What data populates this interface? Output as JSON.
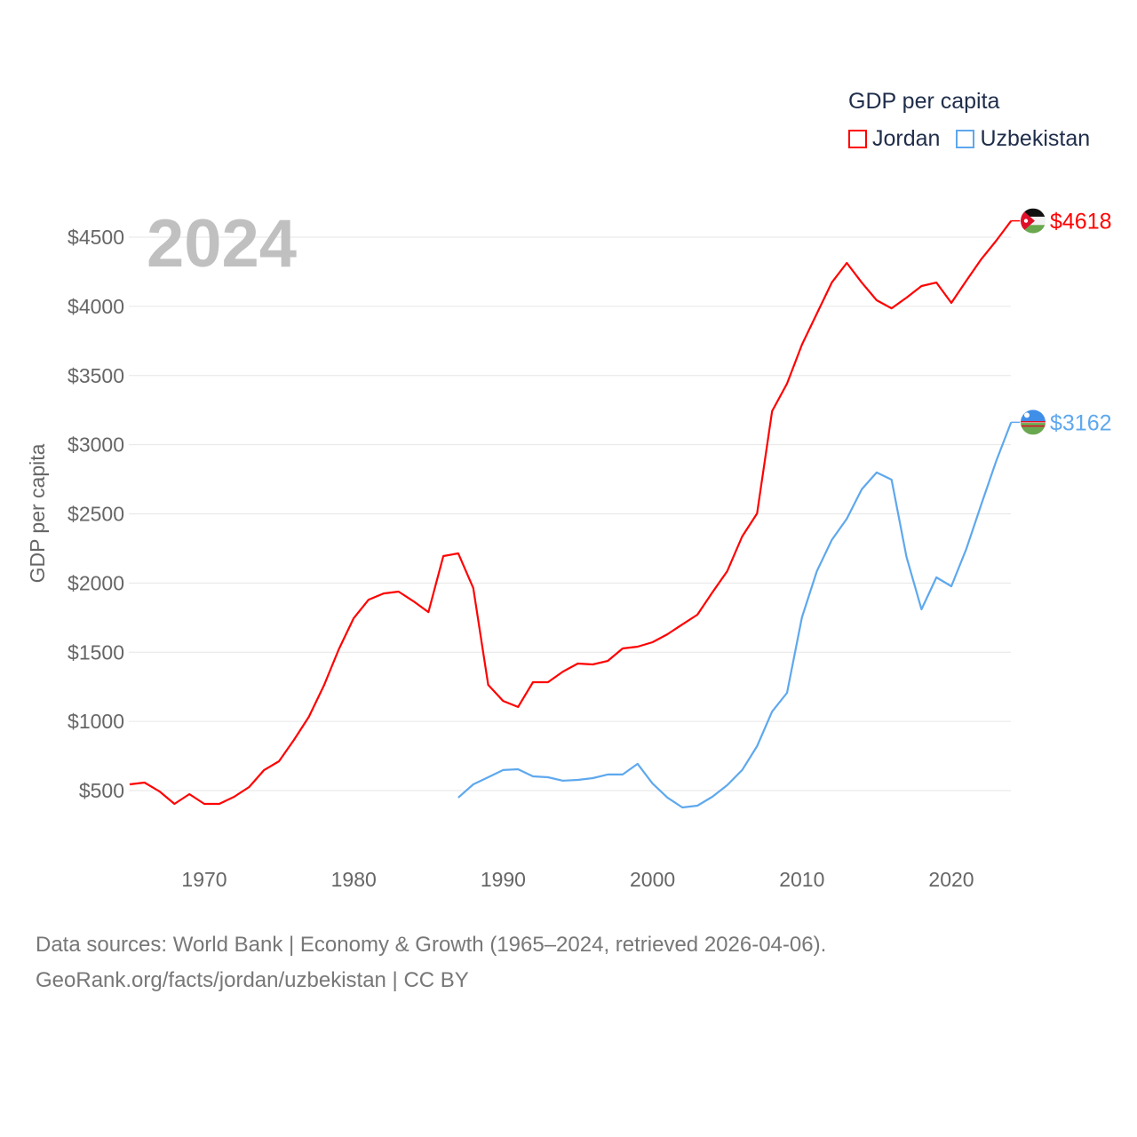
{
  "chart_data": {
    "type": "line",
    "title": "GDP per capita",
    "year_label": "2024",
    "xlabel": "",
    "ylabel": "GDP per capita",
    "xlim": [
      1965,
      2024
    ],
    "ylim": [
      250,
      4750
    ],
    "x_ticks": [
      1970,
      1980,
      1990,
      2000,
      2010,
      2020
    ],
    "y_ticks": [
      500,
      1000,
      1500,
      2000,
      2500,
      3000,
      3500,
      4000,
      4500
    ],
    "y_tick_labels": [
      "$500",
      "$1000",
      "$1500",
      "$2000",
      "$2500",
      "$3000",
      "$3500",
      "$4000",
      "$4500"
    ],
    "grid": true,
    "legend_placement": "top-right",
    "series": [
      {
        "name": "Jordan",
        "color": "#ff0000",
        "end_label": "$4618",
        "start_year": 1965,
        "values": [
          545,
          558,
          494,
          404,
          474,
          404,
          404,
          455,
          526,
          648,
          712,
          866,
          1033,
          1258,
          1521,
          1746,
          1880,
          1925,
          1938,
          1868,
          1790,
          2195,
          2214,
          1964,
          1264,
          1148,
          1104,
          1283,
          1283,
          1360,
          1418,
          1412,
          1437,
          1527,
          1540,
          1572,
          1630,
          1701,
          1771,
          1932,
          2086,
          2336,
          2503,
          3242,
          3441,
          3723,
          3948,
          4172,
          4314,
          4172,
          4044,
          3986,
          4063,
          4147,
          4172,
          4025,
          4185,
          4340,
          4474,
          4618
        ]
      },
      {
        "name": "Uzbekistan",
        "color": "#5ea8ee",
        "end_label": "$3162",
        "start_year": 1987,
        "values": [
          449,
          545,
          596,
          648,
          654,
          603,
          596,
          571,
          577,
          590,
          616,
          616,
          693,
          551,
          449,
          378,
          391,
          455,
          539,
          648,
          821,
          1071,
          1206,
          1752,
          2086,
          2311,
          2465,
          2677,
          2799,
          2747,
          2189,
          1810,
          2041,
          1977,
          2246,
          2567,
          2882,
          3162
        ]
      }
    ]
  },
  "footer": {
    "line1": "Data sources: World Bank | Economy & Growth (1965–2024, retrieved 2026-04-06).",
    "line2": "GeoRank.org/facts/jordan/uzbekistan | CC BY"
  }
}
